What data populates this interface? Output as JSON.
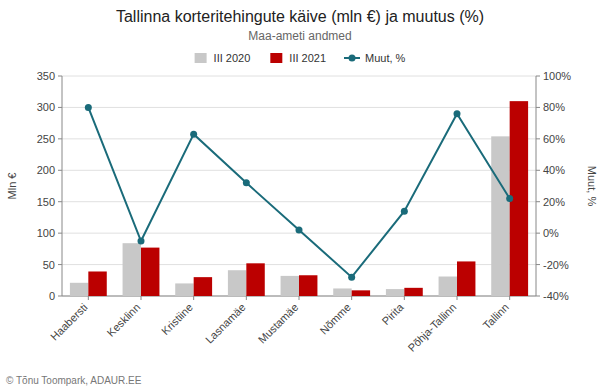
{
  "chart_data": {
    "type": "bar",
    "title": "Tallinna korteritehingute käive (mln €) ja muutus (%)",
    "subtitle": "Maa-ameti andmed",
    "ylabel": "Mln €",
    "y2label": "Muut, %",
    "categories": [
      "Haabersti",
      "Kesklinn",
      "Kristiine",
      "Lasnamäe",
      "Mustamäe",
      "Nõmme",
      "Pirita",
      "Põhja-Tallinn",
      "Tallinn"
    ],
    "series": [
      {
        "name": "III 2020",
        "color": "#c8c8c8",
        "values": [
          21,
          84,
          20,
          41,
          32,
          12,
          11,
          31,
          254
        ]
      },
      {
        "name": "III 2021",
        "color": "#bb0000",
        "values": [
          39,
          77,
          30,
          52,
          33,
          9,
          13,
          55,
          310
        ]
      },
      {
        "name": "Muut, %",
        "type": "line",
        "color": "#1a6b7a",
        "marker": "circle",
        "axis": "y2",
        "values": [
          80,
          -5,
          63,
          32,
          2,
          -28,
          14,
          76,
          22
        ]
      }
    ],
    "ylim": [
      0,
      350
    ],
    "yticks": [
      0,
      50,
      100,
      150,
      200,
      250,
      300,
      350
    ],
    "y2lim": [
      -40,
      100
    ],
    "y2ticks": [
      {
        "value": -40,
        "label": "-40%"
      },
      {
        "value": -20,
        "label": "-20%"
      },
      {
        "value": 0,
        "label": "0%"
      },
      {
        "value": 20,
        "label": "20%"
      },
      {
        "value": 40,
        "label": "40%"
      },
      {
        "value": 60,
        "label": "60%"
      },
      {
        "value": 80,
        "label": "80%"
      },
      {
        "value": 100,
        "label": "100%"
      }
    ],
    "grid": true,
    "legend": "top",
    "annotations": [
      "© Tõnu Toompark, ADAUR.EE"
    ]
  }
}
